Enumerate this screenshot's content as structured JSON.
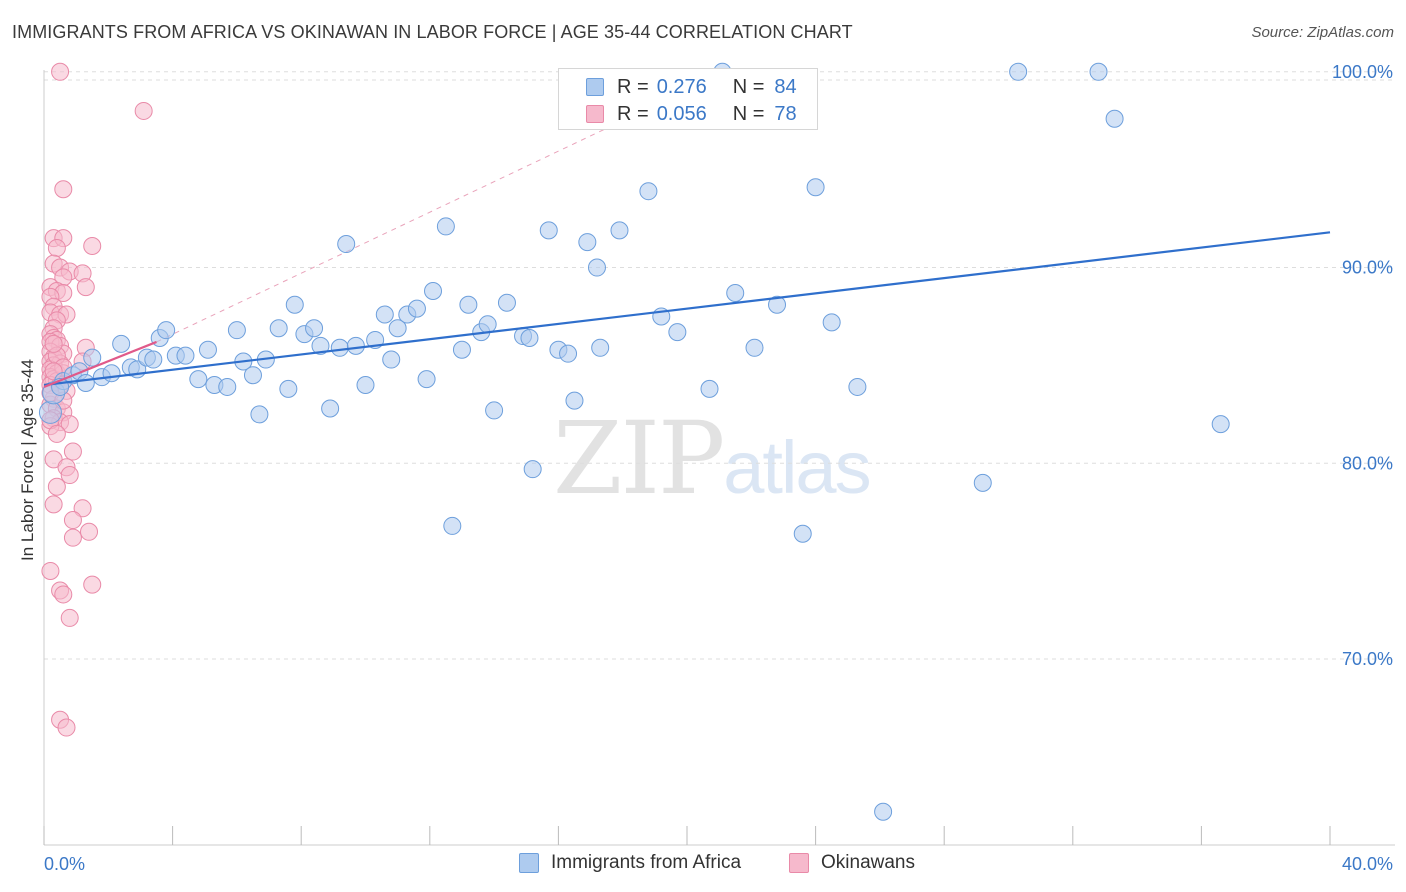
{
  "title": "IMMIGRANTS FROM AFRICA VS OKINAWAN IN LABOR FORCE | AGE 35-44 CORRELATION CHART",
  "source": "Source: ZipAtlas.com",
  "watermark": {
    "zip": "ZIP",
    "atlas": "atlas"
  },
  "legend": {
    "rows": [
      {
        "r_label": "R =",
        "r_value": "0.276",
        "n_label": "N =",
        "n_value": "84"
      },
      {
        "r_label": "R =",
        "r_value": "0.056",
        "n_label": "N =",
        "n_value": "78"
      }
    ]
  },
  "colors": {
    "blue_fill": "#aecbef",
    "blue_stroke": "#6d9fdc",
    "blue_line": "#2f6fcc",
    "pink_fill": "#f6b9cc",
    "pink_stroke": "#e98aa8",
    "pink_line": "#e05a8a",
    "grid": "#dddddd",
    "tick_label": "#3b78c7"
  },
  "chart_data": {
    "type": "scatter",
    "title": "IMMIGRANTS FROM AFRICA VS OKINAWAN IN LABOR FORCE | AGE 35-44 CORRELATION CHART",
    "xlabel": "",
    "ylabel": "In Labor Force | Age 35-44",
    "xlim": [
      0,
      40
    ],
    "ylim": [
      60.5,
      100.5
    ],
    "x_tick_labels": [
      "0.0%",
      "40.0%"
    ],
    "y_ticks": [
      70,
      80,
      90,
      100
    ],
    "y_tick_labels": [
      "70.0%",
      "80.0%",
      "90.0%",
      "100.0%"
    ],
    "grid": true,
    "legend_position": "top-center",
    "series": [
      {
        "name": "Immigrants from Africa",
        "color": "#aecbef",
        "r": 0.276,
        "n": 84,
        "trend": {
          "x": [
            0,
            40
          ],
          "y": [
            84.0,
            91.8
          ]
        },
        "points": [
          [
            0.2,
            82.6
          ],
          [
            0.3,
            83.6
          ],
          [
            0.6,
            84.2
          ],
          [
            0.9,
            84.5
          ],
          [
            1.1,
            84.7
          ],
          [
            1.5,
            85.4
          ],
          [
            1.8,
            84.4
          ],
          [
            2.1,
            84.6
          ],
          [
            2.4,
            86.1
          ],
          [
            2.7,
            84.9
          ],
          [
            2.9,
            84.8
          ],
          [
            3.2,
            85.4
          ],
          [
            3.4,
            85.3
          ],
          [
            3.6,
            86.4
          ],
          [
            3.8,
            86.8
          ],
          [
            4.1,
            85.5
          ],
          [
            4.4,
            85.5
          ],
          [
            4.8,
            84.3
          ],
          [
            5.1,
            85.8
          ],
          [
            5.3,
            84.0
          ],
          [
            5.7,
            83.9
          ],
          [
            6.0,
            86.8
          ],
          [
            6.2,
            85.2
          ],
          [
            6.5,
            84.5
          ],
          [
            6.7,
            82.5
          ],
          [
            6.9,
            85.3
          ],
          [
            7.3,
            86.9
          ],
          [
            7.6,
            83.8
          ],
          [
            7.8,
            88.1
          ],
          [
            8.1,
            86.6
          ],
          [
            8.4,
            86.9
          ],
          [
            8.6,
            86.0
          ],
          [
            8.9,
            82.8
          ],
          [
            9.2,
            85.9
          ],
          [
            9.4,
            91.2
          ],
          [
            9.7,
            86.0
          ],
          [
            10.0,
            84.0
          ],
          [
            10.3,
            86.3
          ],
          [
            10.6,
            87.6
          ],
          [
            10.8,
            85.3
          ],
          [
            11.0,
            86.9
          ],
          [
            11.3,
            87.6
          ],
          [
            11.6,
            87.9
          ],
          [
            11.9,
            84.3
          ],
          [
            12.1,
            88.8
          ],
          [
            12.5,
            92.1
          ],
          [
            12.7,
            76.8
          ],
          [
            13.0,
            85.8
          ],
          [
            13.2,
            88.1
          ],
          [
            13.6,
            86.7
          ],
          [
            13.8,
            87.1
          ],
          [
            14.0,
            82.7
          ],
          [
            14.4,
            88.2
          ],
          [
            14.9,
            86.5
          ],
          [
            15.1,
            86.4
          ],
          [
            15.2,
            79.7
          ],
          [
            15.7,
            91.9
          ],
          [
            16.0,
            85.8
          ],
          [
            16.3,
            85.6
          ],
          [
            16.5,
            83.2
          ],
          [
            16.9,
            91.3
          ],
          [
            17.2,
            90.0
          ],
          [
            17.3,
            85.9
          ],
          [
            17.9,
            91.9
          ],
          [
            18.8,
            93.9
          ],
          [
            19.2,
            87.5
          ],
          [
            19.7,
            86.7
          ],
          [
            20.7,
            83.8
          ],
          [
            21.1,
            100.0
          ],
          [
            21.5,
            88.7
          ],
          [
            22.1,
            85.9
          ],
          [
            22.8,
            88.1
          ],
          [
            23.6,
            76.4
          ],
          [
            24.0,
            94.1
          ],
          [
            24.5,
            87.2
          ],
          [
            25.3,
            83.9
          ],
          [
            26.1,
            62.2
          ],
          [
            29.2,
            79.0
          ],
          [
            30.3,
            100.0
          ],
          [
            32.8,
            100.0
          ],
          [
            33.3,
            97.6
          ],
          [
            36.6,
            82.0
          ],
          [
            0.5,
            83.9
          ],
          [
            1.3,
            84.1
          ]
        ]
      },
      {
        "name": "Okinawans",
        "color": "#f6b9cc",
        "r": 0.056,
        "n": 78,
        "trend": {
          "x": [
            0,
            3.5
          ],
          "y": [
            83.9,
            86.2
          ]
        },
        "trend_extension": {
          "x": [
            3.5,
            21.2
          ],
          "y": [
            86.2,
            100.0
          ]
        },
        "points": [
          [
            0.5,
            100.0
          ],
          [
            3.1,
            98.0
          ],
          [
            0.6,
            94.0
          ],
          [
            0.3,
            91.5
          ],
          [
            0.6,
            91.5
          ],
          [
            0.4,
            91.0
          ],
          [
            1.5,
            91.1
          ],
          [
            0.3,
            90.2
          ],
          [
            0.5,
            90.0
          ],
          [
            0.8,
            89.8
          ],
          [
            1.2,
            89.7
          ],
          [
            0.6,
            89.5
          ],
          [
            0.2,
            89.0
          ],
          [
            1.3,
            89.0
          ],
          [
            0.4,
            88.8
          ],
          [
            0.6,
            88.7
          ],
          [
            0.2,
            88.5
          ],
          [
            0.3,
            88.0
          ],
          [
            0.2,
            87.7
          ],
          [
            0.5,
            87.6
          ],
          [
            0.7,
            87.6
          ],
          [
            0.4,
            87.3
          ],
          [
            0.3,
            86.9
          ],
          [
            0.2,
            86.6
          ],
          [
            0.3,
            86.4
          ],
          [
            0.4,
            86.3
          ],
          [
            0.2,
            86.2
          ],
          [
            0.5,
            86.0
          ],
          [
            1.3,
            85.9
          ],
          [
            0.2,
            85.7
          ],
          [
            0.6,
            85.6
          ],
          [
            0.3,
            85.4
          ],
          [
            0.2,
            85.2
          ],
          [
            0.5,
            85.1
          ],
          [
            0.3,
            85.0
          ],
          [
            1.2,
            85.2
          ],
          [
            0.2,
            84.8
          ],
          [
            0.4,
            84.6
          ],
          [
            0.6,
            84.6
          ],
          [
            0.2,
            84.4
          ],
          [
            0.3,
            84.3
          ],
          [
            0.4,
            84.2
          ],
          [
            0.2,
            84.0
          ],
          [
            0.5,
            84.0
          ],
          [
            0.7,
            83.7
          ],
          [
            0.3,
            83.3
          ],
          [
            0.2,
            83.0
          ],
          [
            0.4,
            82.8
          ],
          [
            0.6,
            82.6
          ],
          [
            0.3,
            82.3
          ],
          [
            0.5,
            82.1
          ],
          [
            0.8,
            82.0
          ],
          [
            0.2,
            81.9
          ],
          [
            0.9,
            80.6
          ],
          [
            0.3,
            80.2
          ],
          [
            0.7,
            79.8
          ],
          [
            0.8,
            79.4
          ],
          [
            0.4,
            78.8
          ],
          [
            0.3,
            77.9
          ],
          [
            1.2,
            77.7
          ],
          [
            0.9,
            77.1
          ],
          [
            1.4,
            76.5
          ],
          [
            0.9,
            76.2
          ],
          [
            0.2,
            74.5
          ],
          [
            1.5,
            73.8
          ],
          [
            0.5,
            73.5
          ],
          [
            0.6,
            73.3
          ],
          [
            0.8,
            72.1
          ],
          [
            0.5,
            66.9
          ],
          [
            0.7,
            66.5
          ],
          [
            0.2,
            83.6
          ],
          [
            0.4,
            85.5
          ],
          [
            0.3,
            86.1
          ],
          [
            0.6,
            84.9
          ],
          [
            0.2,
            82.2
          ],
          [
            0.4,
            81.5
          ],
          [
            0.6,
            83.2
          ],
          [
            0.3,
            84.7
          ]
        ]
      }
    ]
  }
}
